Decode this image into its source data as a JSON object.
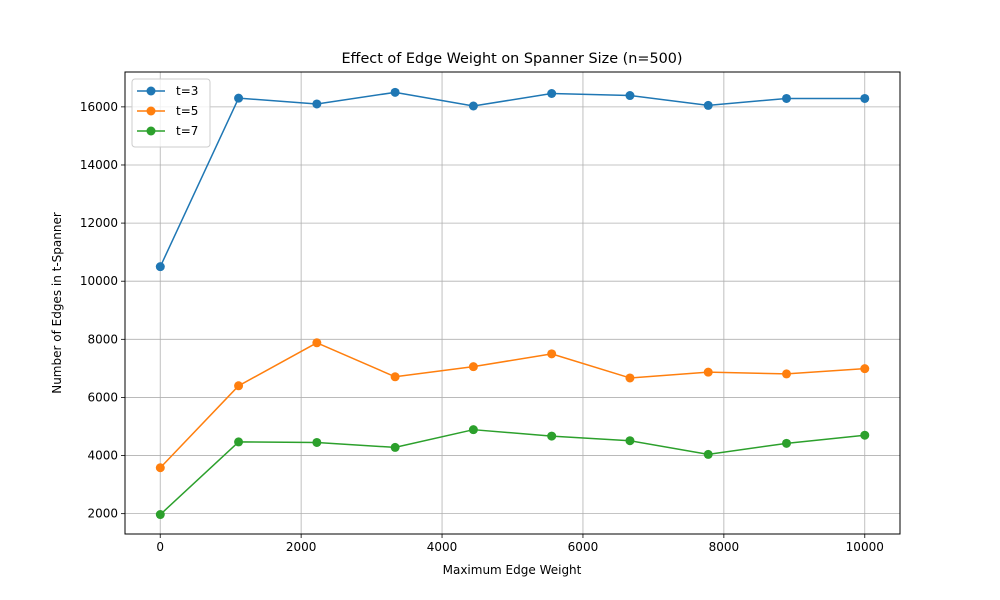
{
  "chart_data": {
    "type": "line",
    "title": "Effect of Edge Weight on Spanner Size (n=500)",
    "xlabel": "Maximum Edge Weight",
    "ylabel": "Number of Edges in t-Spanner",
    "xlim": [
      -500,
      10500
    ],
    "ylim": [
      1300,
      17200
    ],
    "xticks": [
      0,
      2000,
      4000,
      6000,
      8000,
      10000
    ],
    "yticks": [
      2000,
      4000,
      6000,
      8000,
      10000,
      12000,
      14000,
      16000
    ],
    "grid": true,
    "legend_position": "top-left",
    "marker": "circle",
    "x": [
      1,
      1112,
      2223,
      3334,
      4445,
      5556,
      6667,
      7778,
      8889,
      10000
    ],
    "series": [
      {
        "name": "t=3",
        "color": "#1f77b4",
        "values": [
          10500,
          16300,
          16100,
          16500,
          16030,
          16460,
          16390,
          16050,
          16290,
          16290
        ]
      },
      {
        "name": "t=5",
        "color": "#ff7f0e",
        "values": [
          3580,
          6400,
          7880,
          6710,
          7060,
          7500,
          6670,
          6870,
          6810,
          6990
        ]
      },
      {
        "name": "t=7",
        "color": "#2ca02c",
        "values": [
          1970,
          4470,
          4450,
          4280,
          4890,
          4670,
          4510,
          4040,
          4420,
          4700
        ]
      }
    ]
  }
}
